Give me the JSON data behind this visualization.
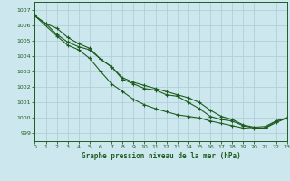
{
  "title": "Graphe pression niveau de la mer (hPa)",
  "xlim": [
    0,
    23
  ],
  "ylim": [
    998.5,
    1007.5
  ],
  "yticks": [
    999,
    1000,
    1001,
    1002,
    1003,
    1004,
    1005,
    1006,
    1007
  ],
  "xticks": [
    0,
    1,
    2,
    3,
    4,
    5,
    6,
    7,
    8,
    9,
    10,
    11,
    12,
    13,
    14,
    15,
    16,
    17,
    18,
    19,
    20,
    21,
    22,
    23
  ],
  "bg_color": "#cce8ee",
  "grid_color_major": "#b0d0d8",
  "grid_color_minor": "#c8e2e8",
  "line_color": "#1e5c1e",
  "line1_x": [
    0,
    1,
    2,
    3,
    4,
    5,
    6,
    7,
    8,
    9,
    10,
    11,
    12,
    13,
    14,
    15,
    16,
    17,
    18,
    19,
    20,
    21,
    22,
    23
  ],
  "line1_y": [
    1006.6,
    1006.1,
    1005.8,
    1005.2,
    1004.8,
    1004.5,
    1003.8,
    1003.3,
    1002.5,
    1002.2,
    1001.9,
    1001.8,
    1001.5,
    1001.4,
    1001.0,
    1000.6,
    1000.1,
    999.9,
    999.8,
    999.5,
    999.35,
    999.35,
    999.8,
    1000.0
  ],
  "line2_x": [
    0,
    1,
    2,
    3,
    4,
    5,
    6,
    7,
    8,
    9,
    10,
    11,
    12,
    13,
    14,
    15,
    16,
    17,
    18,
    19,
    20,
    21,
    22,
    23
  ],
  "line2_y": [
    1006.6,
    1006.1,
    1005.4,
    1004.9,
    1004.6,
    1004.4,
    1003.8,
    1003.3,
    1002.6,
    1002.3,
    1002.1,
    1001.9,
    1001.7,
    1001.5,
    1001.3,
    1001.0,
    1000.5,
    1000.1,
    999.9,
    999.55,
    999.4,
    999.45,
    999.8,
    1000.0
  ],
  "line3_x": [
    0,
    2,
    3,
    4,
    5,
    6,
    7,
    8,
    9,
    10,
    11,
    12,
    13,
    14,
    15,
    16,
    17,
    18,
    19,
    20,
    21,
    22,
    23
  ],
  "line3_y": [
    1006.6,
    1005.3,
    1004.7,
    1004.4,
    1003.85,
    1003.0,
    1002.2,
    1001.7,
    1001.2,
    1000.85,
    1000.6,
    1000.4,
    1000.2,
    1000.1,
    1000.0,
    999.8,
    999.65,
    999.5,
    999.35,
    999.3,
    999.35,
    999.7,
    1000.0
  ]
}
